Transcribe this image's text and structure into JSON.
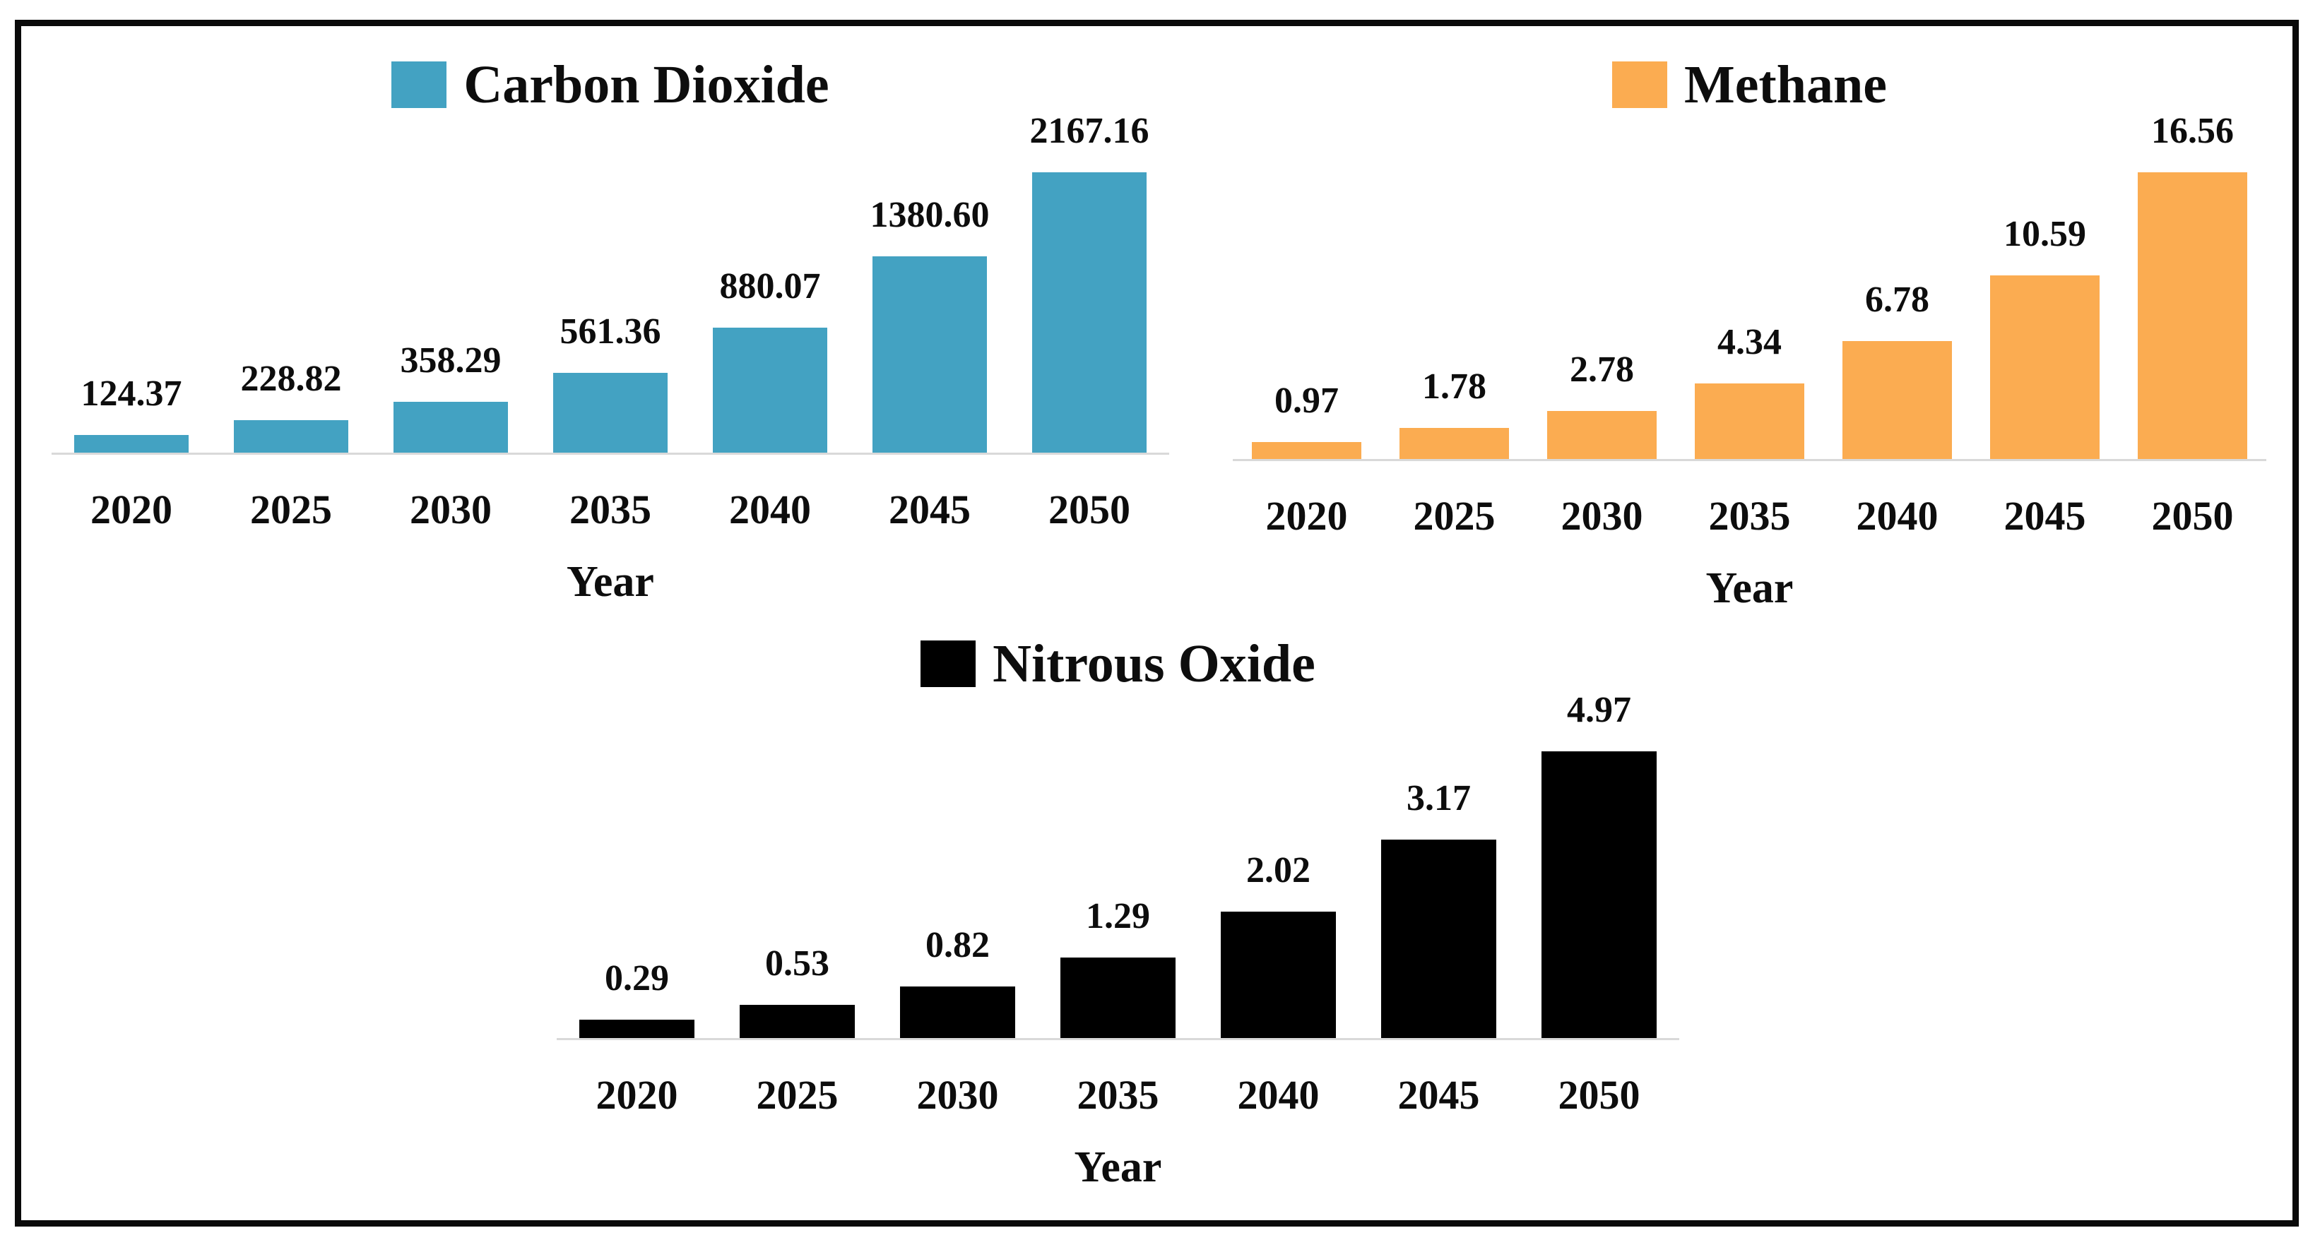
{
  "figure": {
    "background_color": "#ffffff",
    "border_color": "#0a0a0a",
    "baseline_color": "#d9d9d9",
    "x_axis_title": "Year"
  },
  "chart_data": [
    {
      "type": "bar",
      "legend": "Carbon Dioxide",
      "color": "#43a2c2",
      "categories": [
        "2020",
        "2025",
        "2030",
        "2035",
        "2040",
        "2045",
        "2050"
      ],
      "values": [
        124.37,
        228.82,
        358.29,
        561.36,
        880.07,
        1380.6,
        2167.16
      ],
      "value_labels": [
        "124.37",
        "228.82",
        "358.29",
        "561.36",
        "880.07",
        "1380.60",
        "2167.16"
      ],
      "xlabel": "Year",
      "ylabel": "",
      "legend_position": "top-center",
      "grid": false
    },
    {
      "type": "bar",
      "legend": "Methane",
      "color": "#fbac51",
      "categories": [
        "2020",
        "2025",
        "2030",
        "2035",
        "2040",
        "2045",
        "2050"
      ],
      "values": [
        0.97,
        1.78,
        2.78,
        4.34,
        6.78,
        10.59,
        16.56
      ],
      "value_labels": [
        "0.97",
        "1.78",
        "2.78",
        "4.34",
        "6.78",
        "10.59",
        "16.56"
      ],
      "xlabel": "Year",
      "ylabel": "",
      "legend_position": "top-center",
      "grid": false
    },
    {
      "type": "bar",
      "legend": "Nitrous Oxide",
      "color": "#000000",
      "categories": [
        "2020",
        "2025",
        "2030",
        "2035",
        "2040",
        "2045",
        "2050"
      ],
      "values": [
        0.29,
        0.53,
        0.82,
        1.29,
        2.02,
        3.17,
        4.97
      ],
      "value_labels": [
        "0.29",
        "0.53",
        "0.82",
        "1.29",
        "2.02",
        "3.17",
        "4.97"
      ],
      "xlabel": "Year",
      "ylabel": "",
      "legend_position": "top-center",
      "grid": false
    }
  ]
}
